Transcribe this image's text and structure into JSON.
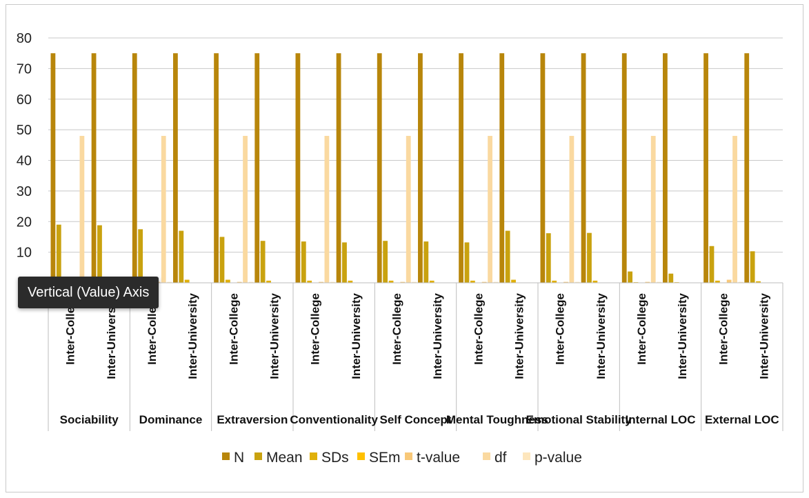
{
  "chart_data": {
    "type": "bar",
    "ylim": [
      0,
      80
    ],
    "yticks": [
      0,
      10,
      20,
      30,
      40,
      50,
      60,
      70,
      80
    ],
    "grid": true,
    "legend_position": "bottom",
    "groups": [
      "Sociability",
      "Dominance",
      "Extraversion",
      "Conventionality",
      "Self Concept",
      "Mental Toughness",
      "Emotional Stability",
      "Internal LOC",
      "External LOC"
    ],
    "subcategories": [
      "Inter-College",
      "Inter-University"
    ],
    "series": [
      {
        "name": "N",
        "color": "#b8860b",
        "values": [
          75,
          75,
          75,
          75,
          75,
          75,
          75,
          75,
          75,
          75,
          75,
          75,
          75,
          75,
          75,
          75,
          75,
          75
        ]
      },
      {
        "name": "Mean",
        "color": "#c9a20f",
        "values": [
          19,
          18.8,
          17.5,
          17,
          15,
          13.7,
          13.5,
          13.2,
          13.7,
          13.5,
          13.2,
          17,
          16.2,
          16.3,
          3.7,
          3,
          12,
          10.3
        ]
      },
      {
        "name": "SDs",
        "color": "#e0b00a",
        "values": [
          0.3,
          0.3,
          0.3,
          1,
          1,
          0.7,
          0.7,
          0.7,
          0.7,
          0.7,
          0.7,
          1,
          0.7,
          0.7,
          0.2,
          0.2,
          0.7,
          0.5
        ]
      },
      {
        "name": "SEm",
        "color": "#ffc000",
        "values": [
          0.1,
          0.1,
          0.1,
          0.1,
          0.1,
          0.1,
          0.1,
          0.1,
          0.1,
          0.1,
          0.1,
          0.1,
          0.1,
          0.1,
          0.05,
          0.05,
          0.1,
          0.1
        ]
      },
      {
        "name": "t-value",
        "color": "#f8c878",
        "values": [
          0.3,
          0.1,
          0.3,
          0.1,
          0.3,
          0.1,
          0.3,
          0.1,
          0.3,
          0.1,
          0.3,
          0.1,
          0.3,
          0.1,
          0.3,
          0.1,
          1,
          0.1
        ]
      },
      {
        "name": "df",
        "color": "#fad9a0",
        "values": [
          48,
          0,
          48,
          0,
          48,
          0,
          48,
          0,
          48,
          0,
          48,
          0,
          48,
          0,
          48,
          0,
          48,
          0
        ]
      },
      {
        "name": "p-value",
        "color": "#fde6bd",
        "values": [
          0.3,
          0,
          0.3,
          0,
          0.3,
          0,
          0.3,
          0,
          0.3,
          0,
          0.3,
          0,
          0.3,
          0,
          0.3,
          0,
          0.3,
          0
        ]
      }
    ]
  },
  "tooltip": {
    "text": "Vertical (Value) Axis"
  }
}
